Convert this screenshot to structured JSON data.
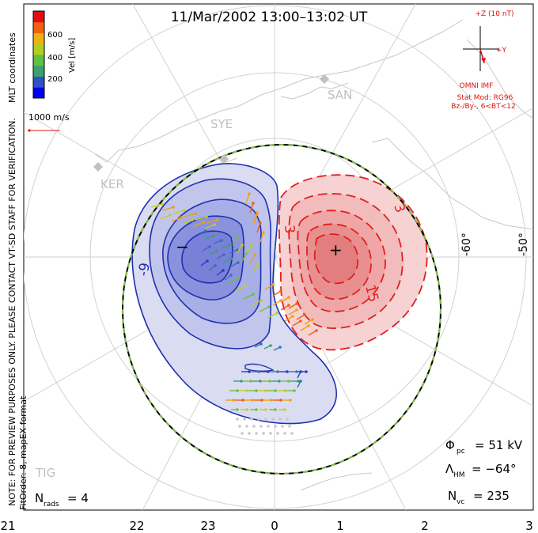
{
  "title": "11/Mar/2002 13:00–13:02 UT",
  "colorbar": {
    "label": "Vel [m/s]",
    "ticks": [
      "600",
      "400",
      "200"
    ],
    "colors": [
      "#0000f0",
      "#3050c8",
      "#3aa070",
      "#60c040",
      "#b0d020",
      "#f0b010",
      "#f06010",
      "#e01010"
    ]
  },
  "coord_label": "MLT coordinates",
  "scale_vector": "1000 m/s",
  "notes": {
    "left": "NOTE: FOR PREVIEW PURPOSES ONLY. PLEASE CONTACT VT-SD STAFF FOR VERIFICATION.",
    "fit": "FitOrder: 8, mapEX format"
  },
  "imf": {
    "z_label": "+Z (10 nT)",
    "y_label": "+Y",
    "title": "OMNI IMF",
    "model": "Stat Mod: RG96",
    "model_params": "Bz-/By-, 6<BT<12"
  },
  "stations": [
    "KER",
    "SYE",
    "SAN",
    "TIG"
  ],
  "lat_labels": [
    "-60°",
    "-50°"
  ],
  "contours": {
    "neg_label": "-9",
    "pos_labels": [
      "3",
      "3",
      "15"
    ],
    "min_marker": "−",
    "max_marker": "+"
  },
  "colors": {
    "negative": "#2030b0",
    "positive": "#e02020",
    "hmb_dash": "#80c040"
  },
  "stats": {
    "phi_pc": {
      "label": "Φ",
      "sub": "pc",
      "value": "= 51 kV"
    },
    "lambda_hm": {
      "label": "Λ",
      "sub": "HM",
      "value": "= −64°"
    },
    "n_vc": {
      "label": "N",
      "sub": "vc",
      "value": "= 235"
    },
    "n_rads": {
      "label": "N",
      "sub": "rads",
      "value": "= 4"
    }
  },
  "mlt_ticks": [
    "21",
    "22",
    "23",
    "0",
    "1",
    "2",
    "3"
  ]
}
